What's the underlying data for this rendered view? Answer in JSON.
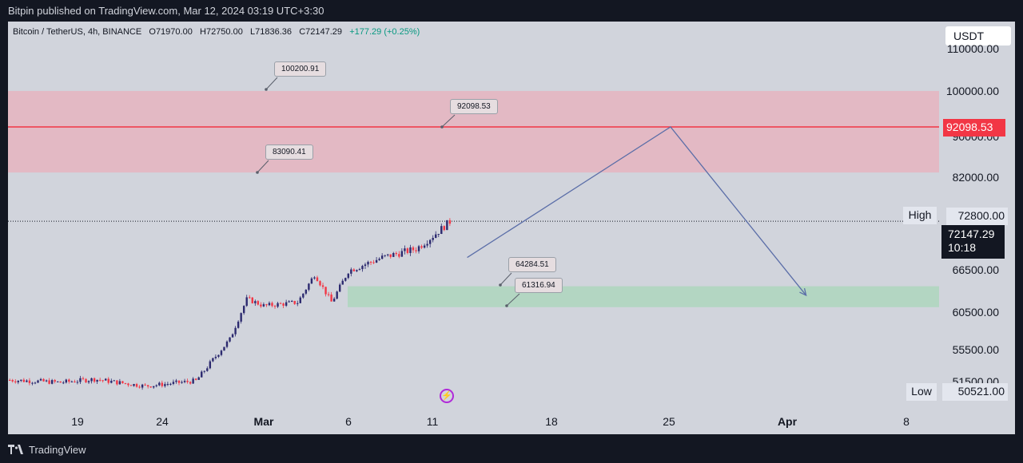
{
  "header": {
    "published_line": "Bitpin published on TradingView.com, Mar 12, 2024 03:19 UTC+3:30"
  },
  "symbol_bar": {
    "pair": "Bitcoin / TetherUS, 4h, BINANCE",
    "open_label": "O",
    "open": "71970.00",
    "high_label": "H",
    "high": "72750.00",
    "low_label": "L",
    "low": "71836.36",
    "close_label": "C",
    "close": "72147.29",
    "change": "+177.29 (+0.25%)"
  },
  "price_axis": {
    "currency": "USDT",
    "labels": [
      "110000.00",
      "100000.00",
      "90000.00",
      "82000.00",
      "72800.00",
      "66500.00",
      "60500.00",
      "55500.00",
      "51500.00"
    ],
    "high_label": "High",
    "high_value": "72800.00",
    "current_price": "72147.29",
    "countdown": "10:18",
    "resistance_line_value": "92098.53",
    "low_label": "Low",
    "low_value": "50521.00"
  },
  "time_axis": {
    "labels": [
      "19",
      "24",
      "Mar",
      "6",
      "11",
      "18",
      "25",
      "Apr",
      "8"
    ]
  },
  "annotations": {
    "callouts": [
      "100200.91",
      "92098.53",
      "83090.41",
      "64284.51",
      "61316.94"
    ]
  },
  "colors": {
    "resistance_zone": "#f2a3b0",
    "support_zone": "#a7d7b6",
    "resistance_line": "#f23645",
    "projection_line": "#5b6ea8",
    "bull_candle": "#2c2a6f",
    "bear_candle": "#f23645",
    "background": "#d1d4dc"
  },
  "footer": {
    "brand": "TradingView"
  },
  "chart_data": {
    "type": "candlestick",
    "title": "",
    "xlabel": "",
    "ylabel": "",
    "ylim": [
      48500,
      112000
    ],
    "x_tick_labels": [
      "19",
      "24",
      "Mar",
      "6",
      "11",
      "18",
      "25",
      "Apr",
      "8"
    ],
    "series_points": [
      {
        "date": "Feb 15",
        "price": 51800
      },
      {
        "date": "Feb 18",
        "price": 51500
      },
      {
        "date": "Feb 20",
        "price": 51900
      },
      {
        "date": "Feb 23",
        "price": 51000
      },
      {
        "date": "Feb 26",
        "price": 51700
      },
      {
        "date": "Feb 28",
        "price": 57000
      },
      {
        "date": "Feb 29",
        "price": 62500
      },
      {
        "date": "Mar 1",
        "price": 61500
      },
      {
        "date": "Mar 3",
        "price": 62000
      },
      {
        "date": "Mar 4",
        "price": 66000
      },
      {
        "date": "Mar 5",
        "price": 62000
      },
      {
        "date": "Mar 6",
        "price": 66500
      },
      {
        "date": "Mar 8",
        "price": 68000
      },
      {
        "date": "Mar 10",
        "price": 69000
      },
      {
        "date": "Mar 11",
        "price": 70500
      },
      {
        "date": "Mar 12",
        "price": 72147.29
      }
    ],
    "zones": [
      {
        "name": "resistance",
        "from": 83090.41,
        "to": 100200.91
      },
      {
        "name": "support",
        "from": 61316.94,
        "to": 64284.51
      }
    ],
    "levels": [
      {
        "name": "resistance-line",
        "value": 92098.53
      }
    ],
    "projection": [
      {
        "date": "Mar 13",
        "price": 68000
      },
      {
        "date": "Mar 25",
        "price": 92098.53
      },
      {
        "date": "Apr 2",
        "price": 63000
      }
    ]
  }
}
